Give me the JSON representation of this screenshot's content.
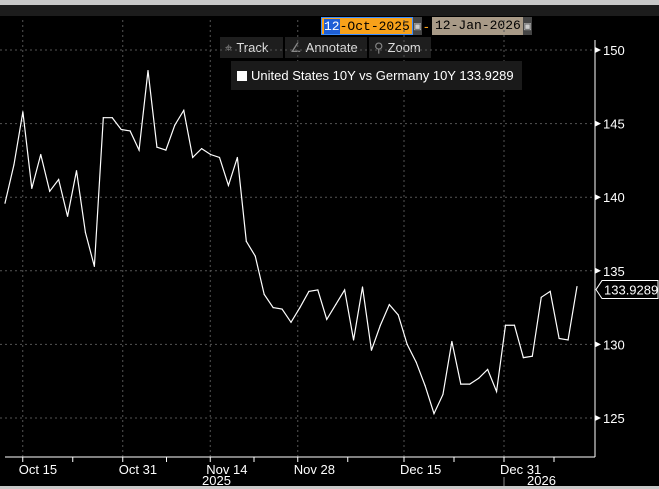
{
  "date_range": {
    "start_prefix": "12",
    "start_rest": "-Oct-2025",
    "separator": "-",
    "end": "12-Jan-2026"
  },
  "toolbar": {
    "track": "Track",
    "annotate": "Annotate",
    "zoom": "Zoom"
  },
  "legend": {
    "label": "United States 10Y vs Germany 10Y",
    "value": "133.9289",
    "color": "#ffffff"
  },
  "chart_data": {
    "type": "line",
    "title": "United States 10Y vs Germany 10Y",
    "ylim": [
      123.5,
      151.5
    ],
    "y_ticks": [
      125,
      130,
      135,
      140,
      145,
      150
    ],
    "y_tick_labels": [
      "125",
      "130",
      "135",
      "140",
      "145",
      "150"
    ],
    "x_range_days": [
      0,
      92
    ],
    "x_ticks": [
      {
        "day": 3,
        "label": "Oct 15"
      },
      {
        "day": 19,
        "label": "Oct 31"
      },
      {
        "day": 33,
        "label": "Nov 14"
      },
      {
        "day": 47,
        "label": "Nov 28"
      },
      {
        "day": 64,
        "label": "Dec 15"
      },
      {
        "day": 80,
        "label": "Dec 31"
      }
    ],
    "year_labels": [
      {
        "day": 34,
        "label": "2025"
      },
      {
        "day": 86,
        "label": "2026"
      }
    ],
    "last_value_label": "133.9289",
    "grid": true,
    "series": [
      {
        "name": "United States 10Y vs Germany 10Y",
        "color": "#ffffff",
        "values": [
          139.6,
          142.2,
          145.8,
          140.6,
          142.9,
          140.4,
          141.2,
          138.7,
          141.8,
          137.6,
          135.3,
          145.4,
          145.4,
          144.6,
          144.5,
          143.2,
          148.6,
          143.4,
          143.2,
          144.9,
          145.9,
          142.7,
          143.3,
          142.9,
          142.7,
          140.8,
          142.7,
          137.0,
          136.0,
          133.4,
          132.5,
          132.4,
          131.5,
          132.5,
          133.6,
          133.7,
          131.7,
          132.7,
          133.7,
          130.3,
          133.9,
          129.6,
          131.3,
          132.7,
          132.0,
          130.0,
          128.8,
          127.2,
          125.3,
          126.6,
          130.2,
          127.3,
          127.3,
          127.7,
          128.3,
          126.8,
          131.3,
          131.3,
          129.1,
          129.2,
          133.2,
          133.6,
          130.4,
          130.3,
          133.93
        ]
      }
    ]
  }
}
